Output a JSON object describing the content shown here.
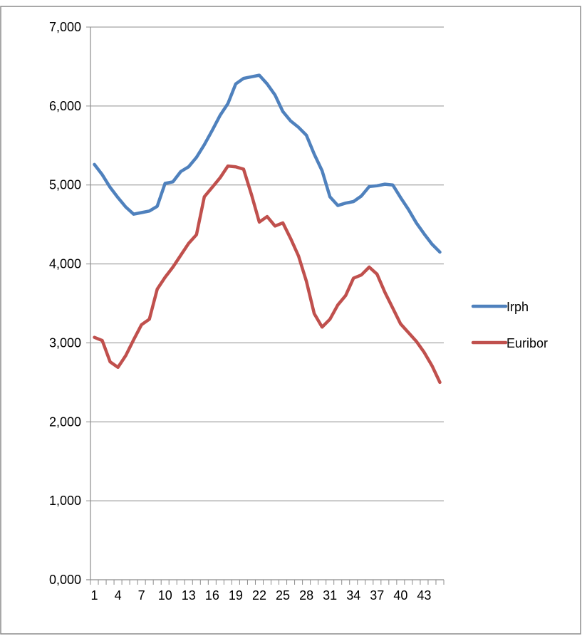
{
  "chart_data": {
    "type": "line",
    "title": "",
    "xlabel": "",
    "ylabel": "",
    "ylim": [
      0,
      7
    ],
    "y_ticks": [
      "0,000",
      "1,000",
      "2,000",
      "3,000",
      "4,000",
      "5,000",
      "6,000",
      "7,000"
    ],
    "x": [
      1,
      2,
      3,
      4,
      5,
      6,
      7,
      8,
      9,
      10,
      11,
      12,
      13,
      14,
      15,
      16,
      17,
      18,
      19,
      20,
      21,
      22,
      23,
      24,
      25,
      26,
      27,
      28,
      29,
      30,
      31,
      32,
      33,
      34,
      35,
      36,
      37,
      38,
      39,
      40,
      41,
      42,
      43,
      44,
      45
    ],
    "x_tick_labels": [
      "1",
      "4",
      "7",
      "10",
      "13",
      "16",
      "19",
      "22",
      "25",
      "28",
      "31",
      "34",
      "37",
      "40",
      "43"
    ],
    "grid": "horizontal",
    "legend_position": "right",
    "series": [
      {
        "name": "Irph",
        "color": "#4f81bd",
        "values": [
          5.26,
          5.13,
          4.97,
          4.84,
          4.72,
          4.63,
          4.65,
          4.67,
          4.73,
          5.02,
          5.04,
          5.17,
          5.23,
          5.35,
          5.51,
          5.69,
          5.88,
          6.03,
          6.28,
          6.35,
          6.37,
          6.39,
          6.28,
          6.14,
          5.93,
          5.81,
          5.73,
          5.63,
          5.39,
          5.18,
          4.85,
          4.74,
          4.77,
          4.79,
          4.86,
          4.98,
          4.99,
          5.01,
          5.0,
          4.84,
          4.69,
          4.52,
          4.38,
          4.25,
          4.15
        ]
      },
      {
        "name": "Euribor",
        "color": "#c0504d",
        "values": [
          3.07,
          3.03,
          2.76,
          2.69,
          2.84,
          3.04,
          3.23,
          3.3,
          3.68,
          3.83,
          3.96,
          4.11,
          4.26,
          4.37,
          4.85,
          4.97,
          5.09,
          5.24,
          5.23,
          5.2,
          4.88,
          4.53,
          4.6,
          4.48,
          4.52,
          4.32,
          4.1,
          3.78,
          3.37,
          3.2,
          3.3,
          3.48,
          3.6,
          3.82,
          3.86,
          3.96,
          3.87,
          3.64,
          3.44,
          3.24,
          3.13,
          3.02,
          2.88,
          2.71,
          2.5
        ]
      }
    ]
  }
}
